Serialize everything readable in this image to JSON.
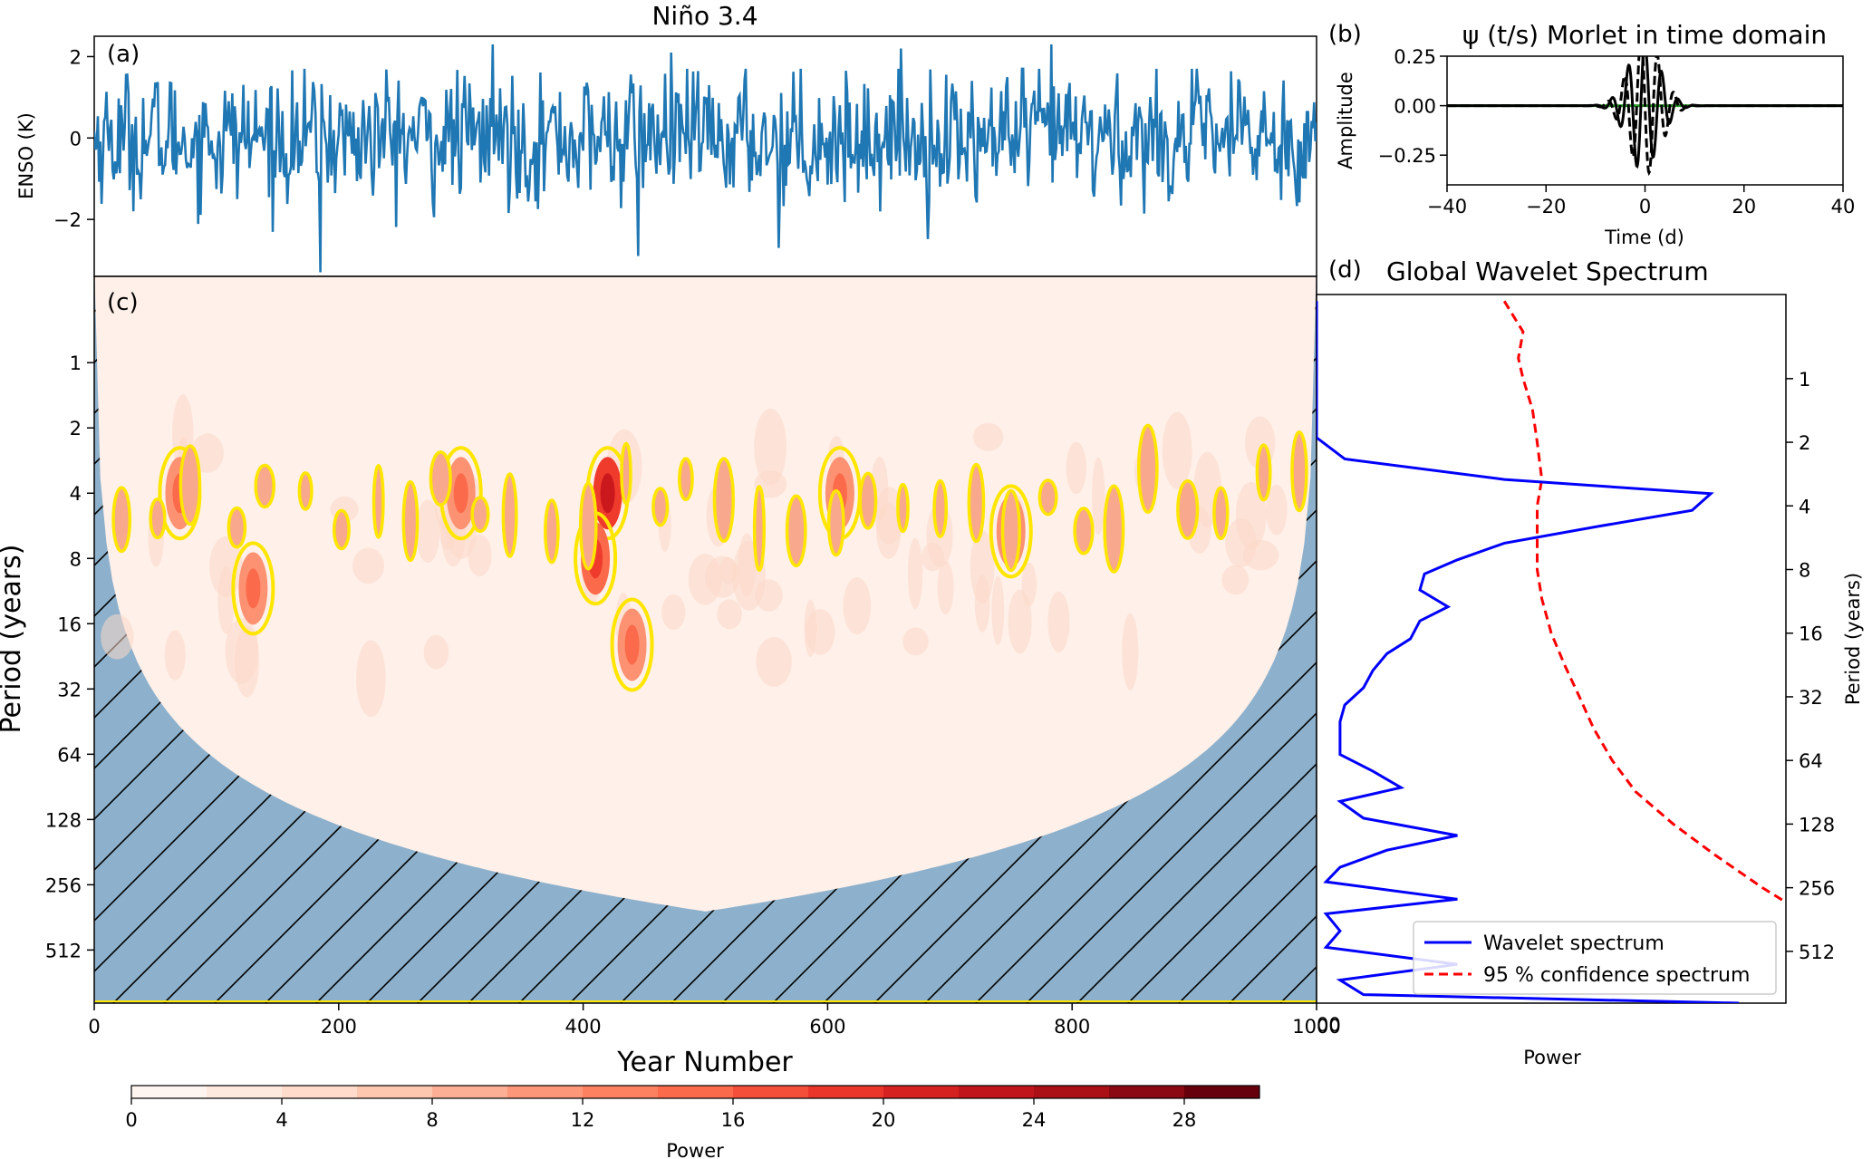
{
  "chart_data": [
    {
      "panel": "(a)",
      "type": "line",
      "title": "Niño 3.4",
      "ylabel": "ENSO (K)",
      "xlim": [
        0,
        1000
      ],
      "ylim": [
        -3.4,
        2.5
      ],
      "yticks": [
        "2",
        "0",
        "−2"
      ],
      "color": "#1f77b4",
      "series_summary": "1000 yearly values of Niño 3.4 anomaly fluctuating around 0, mostly between -2 and 2",
      "extremes": [
        {
          "x": 326,
          "y": 2.3
        },
        {
          "x": 472,
          "y": 2.1
        },
        {
          "x": 660,
          "y": 2.2
        },
        {
          "x": 783,
          "y": 2.3
        },
        {
          "x": 185,
          "y": -3.3
        },
        {
          "x": 445,
          "y": -2.9
        },
        {
          "x": 560,
          "y": -2.7
        }
      ]
    },
    {
      "panel": "(b)",
      "type": "line",
      "title": "ψ (t/s) Morlet in time domain",
      "xlabel": "Time (d)",
      "ylabel": "Amplitude",
      "xlim": [
        -40,
        40
      ],
      "ylim": [
        -0.4,
        0.25
      ],
      "xticks": [
        "−40",
        "−20",
        "0",
        "20",
        "40"
      ],
      "yticks": [
        "0.25",
        "0.00",
        "−0.25"
      ],
      "series": [
        {
          "name": "real part",
          "style": "solid black",
          "envelope_sigma": 3.2,
          "peak": 0.35
        },
        {
          "name": "imaginary part",
          "style": "dashed black",
          "envelope_sigma": 3.2,
          "peak": 0.35
        },
        {
          "name": "zero line",
          "style": "solid green",
          "value": 0.0
        }
      ]
    },
    {
      "panel": "(c)",
      "type": "heatmap",
      "xlabel": "Year Number",
      "ylabel": "Period (years)",
      "xlim": [
        0,
        1000
      ],
      "ylim_period": [
        0.4,
        900
      ],
      "log2_y": true,
      "xticks": [
        "0",
        "200",
        "400",
        "600",
        "800",
        "1000"
      ],
      "yticks": [
        "1",
        "2",
        "4",
        "8",
        "16",
        "32",
        "64",
        "128",
        "256",
        "512"
      ],
      "cone_of_influence_peak_period": 340,
      "significance_contour_color": "#ffe600",
      "hatch_color": "#8db1cc",
      "power_hotspots": [
        {
          "x": 70,
          "period": 4,
          "power": 8
        },
        {
          "x": 130,
          "period": 11,
          "power": 8
        },
        {
          "x": 300,
          "period": 4,
          "power": 8
        },
        {
          "x": 420,
          "period": 4,
          "power": 12
        },
        {
          "x": 410,
          "period": 8,
          "power": 10
        },
        {
          "x": 440,
          "period": 20,
          "power": 6
        },
        {
          "x": 610,
          "period": 4,
          "power": 8
        },
        {
          "x": 750,
          "period": 6,
          "power": 6
        }
      ]
    },
    {
      "panel": "(d)",
      "type": "line",
      "title": "Global Wavelet Spectrum",
      "xlabel": "Power",
      "ylabel": "Period (years)",
      "yticks": [
        "1",
        "2",
        "4",
        "8",
        "16",
        "32",
        "64",
        "128",
        "256",
        "512"
      ],
      "legend": "lower-right",
      "series": [
        {
          "name": "Wavelet spectrum",
          "color": "#0000ff",
          "style": "solid",
          "period": [
            0.43,
            0.6,
            0.8,
            1.0,
            1.4,
            1.9,
            2.4,
            3.0,
            3.5,
            4.2,
            5.0,
            6.0,
            7.2,
            8.4,
            10,
            12,
            14,
            17,
            20,
            24,
            29,
            35,
            42,
            50,
            60,
            72,
            86,
            100,
            120,
            145,
            170,
            205,
            240,
            290,
            340,
            410,
            490,
            590,
            700,
            820,
            900
          ],
          "power": [
            0.0,
            0.0,
            0.0,
            0.0,
            0.0,
            0.0,
            0.06,
            0.4,
            0.84,
            0.8,
            0.6,
            0.4,
            0.3,
            0.23,
            0.22,
            0.28,
            0.22,
            0.2,
            0.15,
            0.12,
            0.1,
            0.06,
            0.05,
            0.05,
            0.05,
            0.12,
            0.18,
            0.05,
            0.1,
            0.3,
            0.15,
            0.05,
            0.02,
            0.3,
            0.02,
            0.05,
            0.02,
            0.3,
            0.05,
            0.1,
            0.9
          ]
        },
        {
          "name": "95 % confidence spectrum",
          "color": "#ff0000",
          "style": "dashed",
          "period": [
            0.43,
            0.6,
            0.8,
            1.0,
            1.4,
            2.0,
            3.0,
            4.0,
            6.0,
            8.0,
            11,
            16,
            23,
            32,
            45,
            64,
            90,
            128,
            180,
            256,
            300
          ],
          "power": [
            0.4,
            0.44,
            0.43,
            0.44,
            0.46,
            0.47,
            0.48,
            0.47,
            0.47,
            0.47,
            0.48,
            0.5,
            0.53,
            0.56,
            0.59,
            0.63,
            0.68,
            0.76,
            0.85,
            0.95,
            1.0
          ]
        }
      ]
    },
    {
      "type": "colorbar",
      "label": "Power",
      "ticks": [
        "0",
        "4",
        "8",
        "12",
        "16",
        "20",
        "24",
        "28"
      ],
      "range": [
        0,
        30
      ],
      "levels": 15,
      "colormap": "Reds"
    }
  ]
}
